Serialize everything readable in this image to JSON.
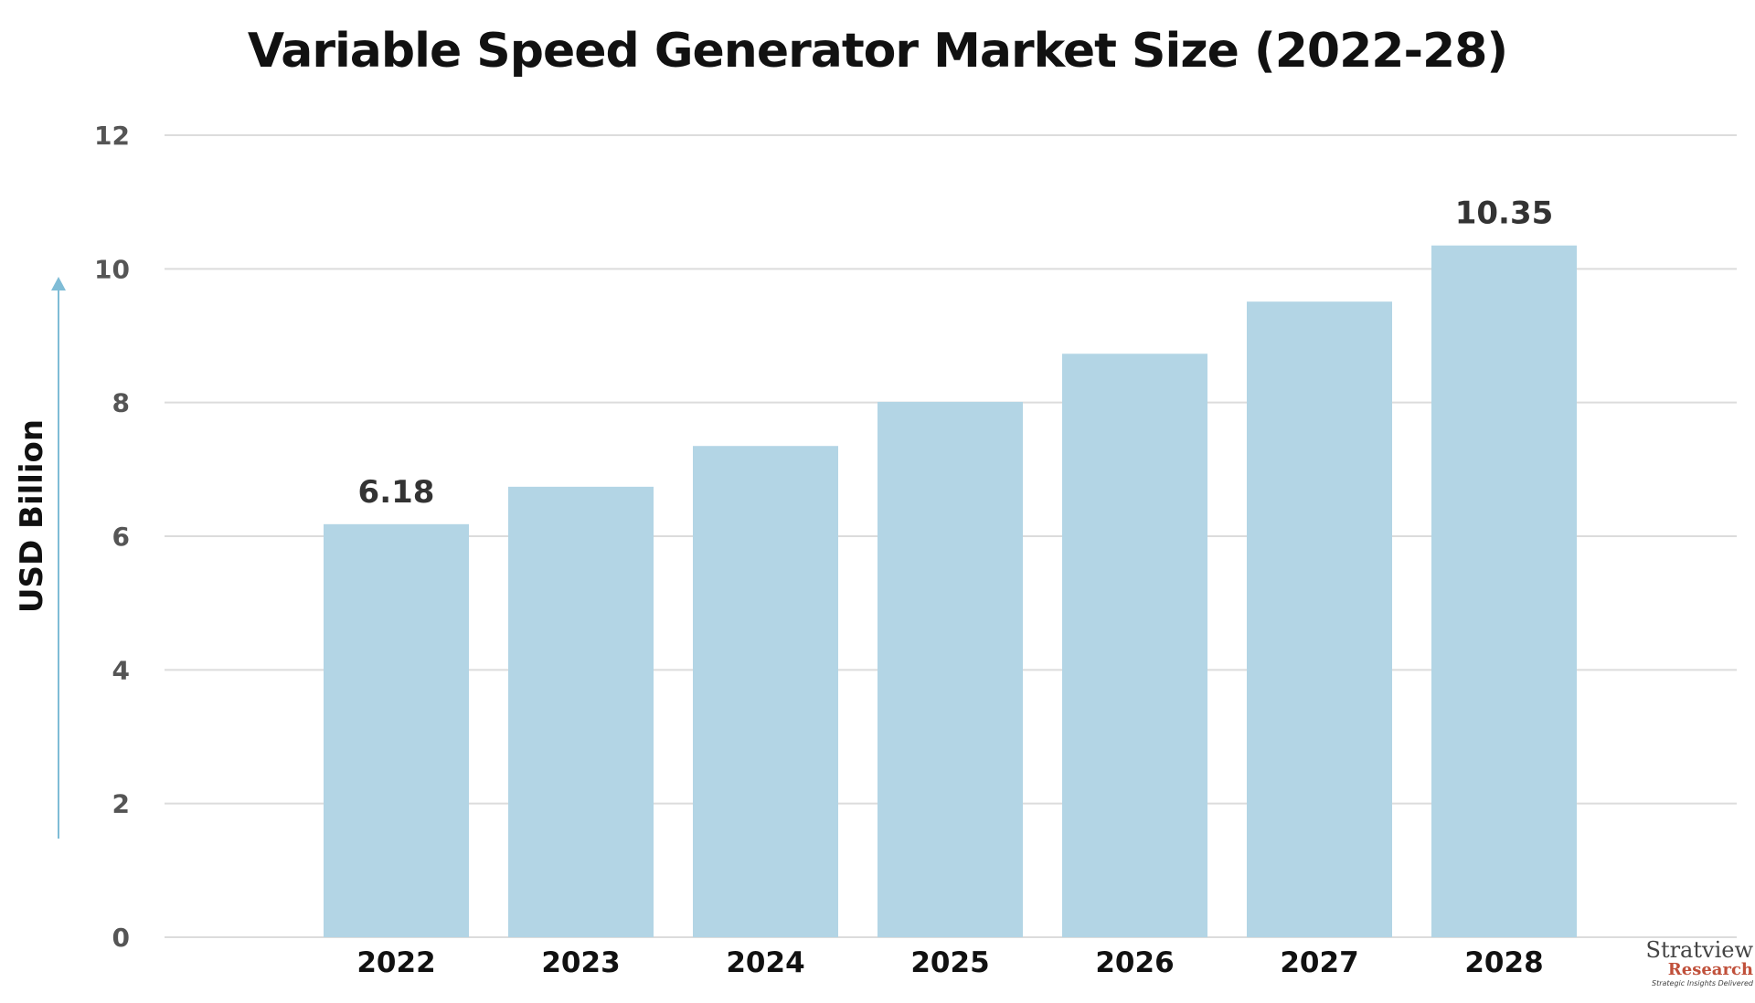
{
  "chart_data": {
    "type": "bar",
    "title": "Variable Speed Generator Market Size (2022-28)",
    "ylabel": "USD Billion",
    "xlabel": "",
    "categories": [
      "2022",
      "2023",
      "2024",
      "2025",
      "2026",
      "2027",
      "2028"
    ],
    "values": [
      6.18,
      6.74,
      7.35,
      8.01,
      8.73,
      9.51,
      10.35
    ],
    "data_labels": {
      "0": "6.18",
      "6": "10.35"
    },
    "ylim": [
      0,
      12
    ],
    "yticks": [
      "0",
      "2",
      "4",
      "6",
      "8",
      "10",
      "12"
    ],
    "grid": true,
    "bar_color": "#b3d5e5",
    "arrow_color": "#7fbcd6"
  },
  "logo": {
    "name": "Stratview",
    "tm": "TM",
    "sub": "Research",
    "tagline": "Strategic Insights Delivered"
  }
}
